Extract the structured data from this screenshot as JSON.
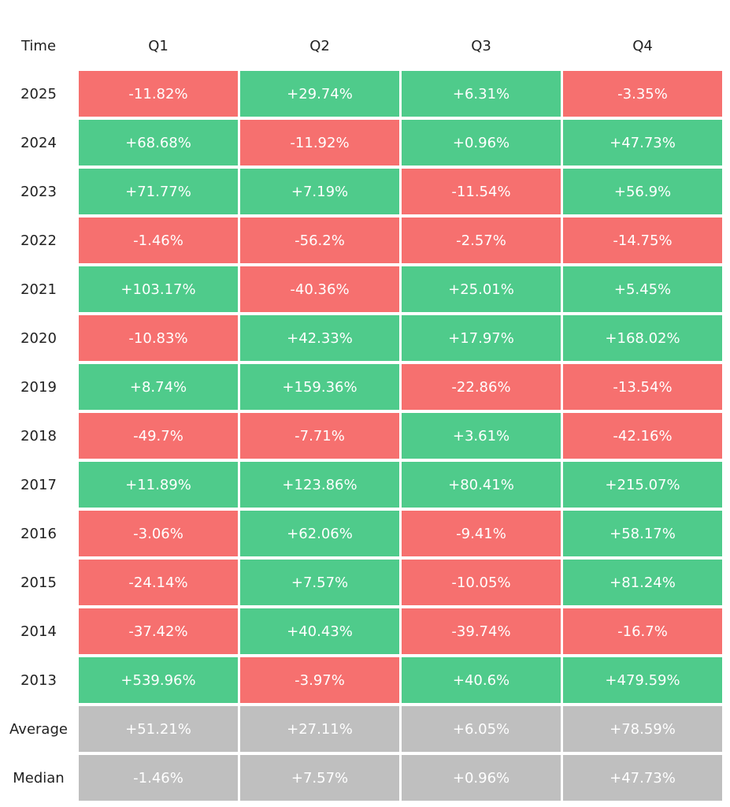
{
  "table": {
    "header": [
      "Time",
      "Q1",
      "Q2",
      "Q3",
      "Q4"
    ],
    "rows": [
      [
        "2025",
        "-11.82%",
        "+29.74%",
        "+6.31%",
        "-3.35%"
      ],
      [
        "2024",
        "+68.68%",
        "-11.92%",
        "+0.96%",
        "+47.73%"
      ],
      [
        "2023",
        "+71.77%",
        "+7.19%",
        "-11.54%",
        "+56.9%"
      ],
      [
        "2022",
        "-1.46%",
        "-56.2%",
        "-2.57%",
        "-14.75%"
      ],
      [
        "2021",
        "+103.17%",
        "-40.36%",
        "+25.01%",
        "+5.45%"
      ],
      [
        "2020",
        "-10.83%",
        "+42.33%",
        "+17.97%",
        "+168.02%"
      ],
      [
        "2019",
        "+8.74%",
        "+159.36%",
        "-22.86%",
        "-13.54%"
      ],
      [
        "2018",
        "-49.7%",
        "-7.71%",
        "+3.61%",
        "-42.16%"
      ],
      [
        "2017",
        "+11.89%",
        "+123.86%",
        "+80.41%",
        "+215.07%"
      ],
      [
        "2016",
        "-3.06%",
        "+62.06%",
        "-9.41%",
        "+58.17%"
      ],
      [
        "2015",
        "-24.14%",
        "+7.57%",
        "-10.05%",
        "+81.24%"
      ],
      [
        "2014",
        "-37.42%",
        "+40.43%",
        "-39.74%",
        "-16.7%"
      ],
      [
        "2013",
        "+539.96%",
        "-3.97%",
        "+40.6%",
        "+479.59%"
      ]
    ],
    "summary": [
      [
        "Average",
        "+51.21%",
        "+27.11%",
        "+6.05%",
        "+78.59%"
      ],
      [
        "Median",
        "-1.46%",
        "+7.57%",
        "+0.96%",
        "+47.73%"
      ]
    ],
    "colors": {
      "positive": "#4fcb8b",
      "negative": "#f6706f",
      "summary": "#bfbfbf"
    }
  }
}
